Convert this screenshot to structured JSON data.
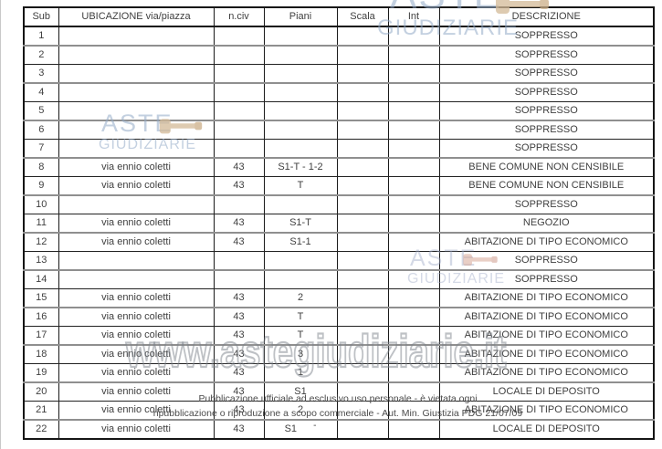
{
  "table": {
    "headers": [
      "Sub",
      "UBICAZIONE via/piazza",
      "n.civ",
      "Piani",
      "Scala",
      "Int",
      "DESCRIZIONE"
    ],
    "rows": [
      {
        "sub": "1",
        "ubicazione": "",
        "nciv": "",
        "piani": "",
        "scala": "",
        "int": "",
        "descrizione": "SOPPRESSO"
      },
      {
        "sub": "2",
        "ubicazione": "",
        "nciv": "",
        "piani": "",
        "scala": "",
        "int": "",
        "descrizione": "SOPPRESSO"
      },
      {
        "sub": "3",
        "ubicazione": "",
        "nciv": "",
        "piani": "",
        "scala": "",
        "int": "",
        "descrizione": "SOPPRESSO"
      },
      {
        "sub": "4",
        "ubicazione": "",
        "nciv": "",
        "piani": "",
        "scala": "",
        "int": "",
        "descrizione": "SOPPRESSO"
      },
      {
        "sub": "5",
        "ubicazione": "",
        "nciv": "",
        "piani": "",
        "scala": "",
        "int": "",
        "descrizione": "SOPPRESSO"
      },
      {
        "sub": "6",
        "ubicazione": "",
        "nciv": "",
        "piani": "",
        "scala": "",
        "int": "",
        "descrizione": "SOPPRESSO"
      },
      {
        "sub": "7",
        "ubicazione": "",
        "nciv": "",
        "piani": "",
        "scala": "",
        "int": "",
        "descrizione": "SOPPRESSO"
      },
      {
        "sub": "8",
        "ubicazione": "via ennio coletti",
        "nciv": "43",
        "piani": "S1-T - 1-2",
        "scala": "",
        "int": "",
        "descrizione": "BENE COMUNE NON CENSIBILE"
      },
      {
        "sub": "9",
        "ubicazione": "via ennio coletti",
        "nciv": "43",
        "piani": "T",
        "scala": "",
        "int": "",
        "descrizione": "BENE COMUNE NON CENSIBILE"
      },
      {
        "sub": "10",
        "ubicazione": "",
        "nciv": "",
        "piani": "",
        "scala": "",
        "int": "",
        "descrizione": "SOPPRESSO"
      },
      {
        "sub": "11",
        "ubicazione": "via ennio coletti",
        "nciv": "43",
        "piani": "S1-T",
        "scala": "",
        "int": "",
        "descrizione": "NEGOZIO"
      },
      {
        "sub": "12",
        "ubicazione": "via ennio coletti",
        "nciv": "43",
        "piani": "S1-1",
        "scala": "",
        "int": "",
        "descrizione": "ABITAZIONE DI TIPO ECONOMICO"
      },
      {
        "sub": "13",
        "ubicazione": "",
        "nciv": "",
        "piani": "",
        "scala": "",
        "int": "",
        "descrizione": "SOPPRESSO"
      },
      {
        "sub": "14",
        "ubicazione": "",
        "nciv": "",
        "piani": "",
        "scala": "",
        "int": "",
        "descrizione": "SOPPRESSO"
      },
      {
        "sub": "15",
        "ubicazione": "via ennio coletti",
        "nciv": "43",
        "piani": "2",
        "scala": "",
        "int": "",
        "descrizione": "ABITAZIONE DI TIPO ECONOMICO"
      },
      {
        "sub": "16",
        "ubicazione": "via ennio coletti",
        "nciv": "43",
        "piani": "T",
        "scala": "",
        "int": "",
        "descrizione": "ABITAZIONE DI TIPO ECONOMICO"
      },
      {
        "sub": "17",
        "ubicazione": "via ennio coletti",
        "nciv": "43",
        "piani": "T",
        "scala": "",
        "int": "",
        "descrizione": "ABITAZIONE DI TIPO ECONOMICO"
      },
      {
        "sub": "18",
        "ubicazione": "via ennio coletti",
        "nciv": "43",
        "piani": "3",
        "scala": "",
        "int": "",
        "descrizione": "ABITAZIONE DI TIPO ECONOMICO"
      },
      {
        "sub": "19",
        "ubicazione": "via ennio coletti",
        "nciv": "43",
        "piani": "1",
        "scala": "",
        "int": "",
        "descrizione": "ABITAZIONE DI TIPO ECONOMICO"
      },
      {
        "sub": "20",
        "ubicazione": "via ennio coletti",
        "nciv": "43",
        "piani": "S1",
        "scala": "",
        "int": "",
        "descrizione": "LOCALE DI DEPOSITO"
      },
      {
        "sub": "21",
        "ubicazione": "via ennio coletti",
        "nciv": "43",
        "piani": "2",
        "scala": "",
        "int": "",
        "descrizione": "ABITAZIONE DI TIPO ECONOMICO"
      },
      {
        "sub": "22",
        "ubicazione": "via ennio coletti",
        "nciv": "43",
        "piani": "S1",
        "piani_sup": "-",
        "scala": "",
        "int": "",
        "descrizione": "LOCALE DI DEPOSITO"
      }
    ]
  },
  "watermarks": {
    "logo_line1": "ASTE",
    "logo_line2": "GIUDIZIARIE",
    "url": "www.astegiudiziarie.it",
    "disclaimer_line1": "Pubblicazione ufficiale ad esclusivo uso personale - è vietata ogni",
    "disclaimer_line2": "ripubblicazione o riproduzione a scopo commerciale - Aut. Min. Giustizia PDG 21/07/09"
  },
  "colors": {
    "logo_blue": "#92aac6",
    "gavel_tan": "#d4ba97",
    "border_dark": "#1a1a1a",
    "border_gray": "#8f8f8f",
    "text": "#3f3f3f"
  }
}
